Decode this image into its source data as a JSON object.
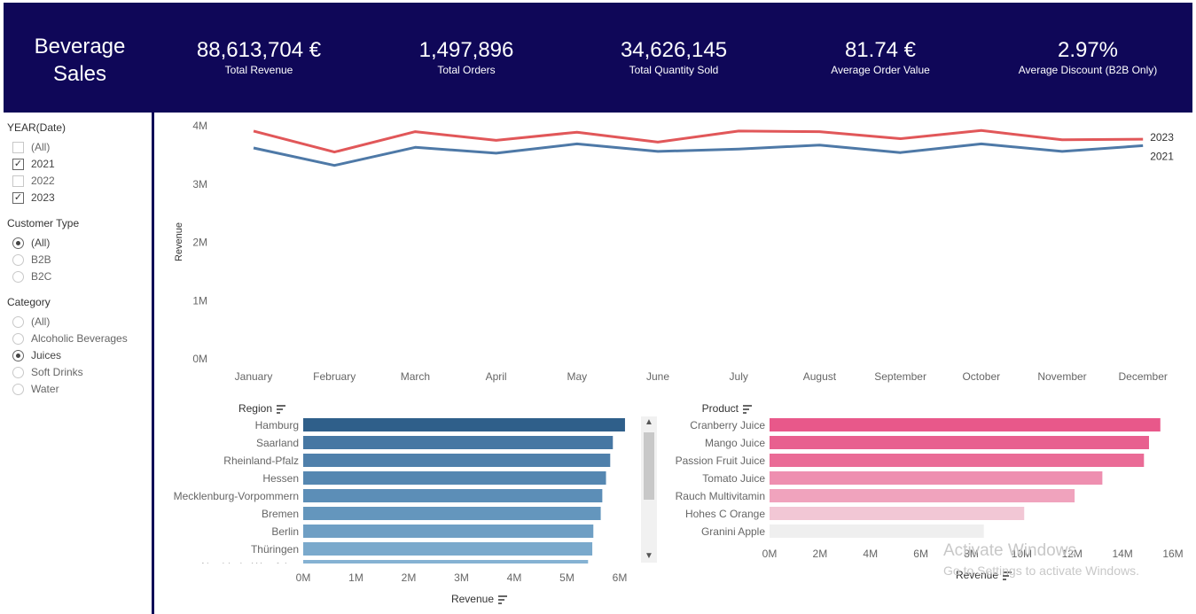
{
  "header": {
    "title_line1": "Beverage",
    "title_line2": "Sales",
    "kpis": [
      {
        "value": "88,613,704 €",
        "label": "Total Revenue"
      },
      {
        "value": "1,497,896",
        "label": "Total Orders"
      },
      {
        "value": "34,626,145",
        "label": "Total Quantity Sold"
      },
      {
        "value": "81.74 €",
        "label": "Average Order Value"
      },
      {
        "value": "2.97%",
        "label": "Average Discount (B2B Only)"
      }
    ]
  },
  "filters": {
    "year": {
      "title": "YEAR(Date)",
      "items": [
        {
          "label": "(All)",
          "checked": false
        },
        {
          "label": "2021",
          "checked": true
        },
        {
          "label": "2022",
          "checked": false
        },
        {
          "label": "2023",
          "checked": true
        }
      ]
    },
    "customer_type": {
      "title": "Customer Type",
      "items": [
        {
          "label": "(All)",
          "selected": true
        },
        {
          "label": "B2B",
          "selected": false
        },
        {
          "label": "B2C",
          "selected": false
        }
      ]
    },
    "category": {
      "title": "Category",
      "items": [
        {
          "label": "(All)",
          "selected": false
        },
        {
          "label": "Alcoholic Beverages",
          "selected": false
        },
        {
          "label": "Juices",
          "selected": true
        },
        {
          "label": "Soft Drinks",
          "selected": false
        },
        {
          "label": "Water",
          "selected": false
        }
      ]
    }
  },
  "chart_data": [
    {
      "type": "line",
      "ylabel": "Revenue",
      "xlabel": "",
      "ylim": [
        0,
        4000000
      ],
      "yticks": [
        "0M",
        "1M",
        "2M",
        "3M",
        "4M"
      ],
      "categories": [
        "January",
        "February",
        "March",
        "April",
        "May",
        "June",
        "July",
        "August",
        "September",
        "October",
        "November",
        "December"
      ],
      "series": [
        {
          "name": "2023",
          "color": "#e15759",
          "values": [
            3910000,
            3550000,
            3900000,
            3750000,
            3890000,
            3720000,
            3910000,
            3900000,
            3780000,
            3920000,
            3760000,
            3770000
          ]
        },
        {
          "name": "2021",
          "color": "#4e79a7",
          "values": [
            3620000,
            3320000,
            3630000,
            3530000,
            3690000,
            3560000,
            3600000,
            3670000,
            3540000,
            3690000,
            3560000,
            3660000
          ]
        }
      ],
      "grid": false
    },
    {
      "type": "bar",
      "orientation": "horizontal",
      "category_title": "Region",
      "xlabel": "Revenue",
      "xlim": [
        0,
        6000000
      ],
      "xticks": [
        "0M",
        "1M",
        "2M",
        "3M",
        "4M",
        "5M",
        "6M"
      ],
      "categories": [
        "Hamburg",
        "Saarland",
        "Rheinland-Pfalz",
        "Hessen",
        "Mecklenburg-Vorpommern",
        "Bremen",
        "Berlin",
        "Thüringen",
        "Nordrhein-Westfalen"
      ],
      "values": [
        6100000,
        5870000,
        5820000,
        5740000,
        5670000,
        5640000,
        5500000,
        5480000,
        5400000
      ],
      "colors": [
        "#2f5f8a",
        "#4677a3",
        "#4f80ab",
        "#5587b1",
        "#5c8eb7",
        "#6496bd",
        "#6f9fc4",
        "#7aa9cc",
        "#85b2d3"
      ]
    },
    {
      "type": "bar",
      "orientation": "horizontal",
      "category_title": "Product",
      "xlabel": "Revenue",
      "xlim": [
        0,
        16000000
      ],
      "xticks": [
        "0M",
        "2M",
        "4M",
        "6M",
        "8M",
        "10M",
        "12M",
        "14M",
        "16M"
      ],
      "categories": [
        "Cranberry Juice",
        "Mango Juice",
        "Passion Fruit Juice",
        "Tomato Juice",
        "Rauch Multivitamin",
        "Hohes C Orange",
        "Granini Apple"
      ],
      "values": [
        15500000,
        15050000,
        14850000,
        13200000,
        12100000,
        10100000,
        8500000
      ],
      "colors": [
        "#e8588a",
        "#e8608f",
        "#ea6b96",
        "#ee8fb0",
        "#f0a3bd",
        "#f2c7d5",
        "#efefef"
      ]
    }
  ],
  "watermark": {
    "line1": "Activate Windows",
    "line2": "Go to Settings to activate Windows."
  }
}
